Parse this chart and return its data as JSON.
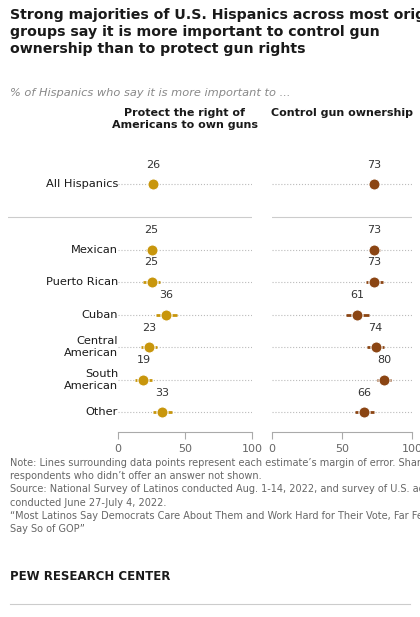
{
  "title_line1": "Strong majorities of U.S. Hispanics across most origin",
  "title_line2": "groups say it is more important to control gun",
  "title_line3": "ownership than to protect gun rights",
  "subtitle": "% of Hispanics who say it is more important to ...",
  "col1_header": "Protect the right of\nAmericans to own guns",
  "col2_header": "Control gun ownership",
  "categories": [
    "All Hispanics",
    "Mexican",
    "Puerto Rican",
    "Cuban",
    "Central\nAmerican",
    "South\nAmerican",
    "Other"
  ],
  "left_values": [
    26,
    25,
    25,
    36,
    23,
    19,
    33
  ],
  "right_values": [
    73,
    73,
    73,
    61,
    74,
    80,
    66
  ],
  "left_errors": [
    3,
    4,
    6,
    8,
    6,
    6,
    7
  ],
  "right_errors": [
    3,
    4,
    6,
    8,
    6,
    5,
    7
  ],
  "dot_color_left": "#C8960C",
  "dot_color_right": "#8B4513",
  "note": "Note: Lines surrounding data points represent each estimate’s margin of error. Share of\nrespondents who didn’t offer an answer not shown.\nSource: National Survey of Latinos conducted Aug. 1-14, 2022, and survey of U.S. adults\nconducted June 27-July 4, 2022.\n“Most Latinos Say Democrats Care About Them and Work Hard for Their Vote, Far Fewer\nSay So of GOP”",
  "footer": "PEW RESEARCH CENTER",
  "bg_color": "#FFFFFF",
  "text_color": "#1a1a1a",
  "note_color": "#666666"
}
